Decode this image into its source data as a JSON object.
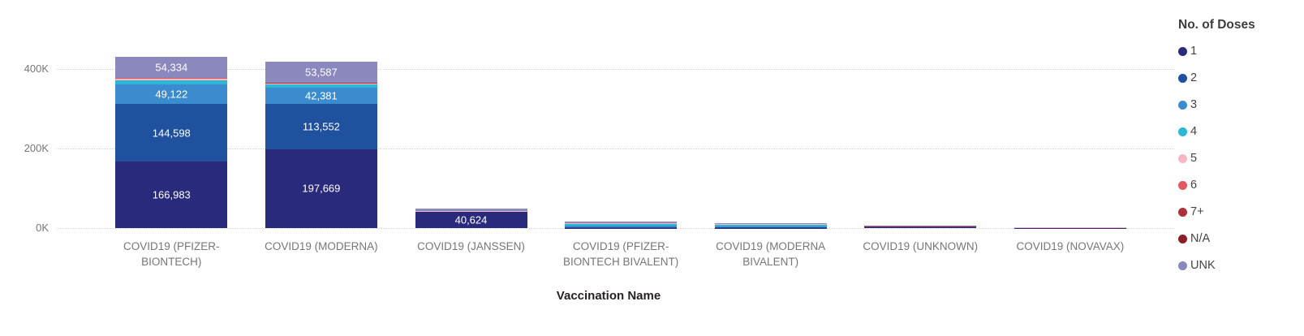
{
  "chart_data": {
    "type": "bar",
    "stacked": true,
    "title": "",
    "xlabel": "Vaccination Name",
    "ylabel": "",
    "ylim": [
      0,
      480000
    ],
    "grid": "dotted-horizontal",
    "legend_title": "No. of Doses",
    "legend_position": "right",
    "y_ticks": [
      {
        "value": 0,
        "label": "0K"
      },
      {
        "value": 200000,
        "label": "200K"
      },
      {
        "value": 400000,
        "label": "400K"
      }
    ],
    "categories": [
      "COVID19 (PFIZER-BIONTECH)",
      "COVID19 (MODERNA)",
      "COVID19 (JANSSEN)",
      "COVID19 (PFIZER-BIONTECH BIVALENT)",
      "COVID19 (MODERNA BIVALENT)",
      "COVID19 (UNKNOWN)",
      "COVID19 (NOVAVAX)"
    ],
    "series": [
      {
        "name": "1",
        "color": "#2a2a7d",
        "values": [
          166983,
          197669,
          40624,
          400,
          300,
          1500,
          400
        ],
        "labels": [
          "166,983",
          "197,669",
          "40,624",
          "",
          "",
          "",
          ""
        ]
      },
      {
        "name": "2",
        "color": "#1f519f",
        "values": [
          144598,
          113552,
          500,
          1200,
          700,
          2500,
          400
        ],
        "labels": [
          "144,598",
          "113,552",
          "",
          "",
          "",
          "",
          ""
        ]
      },
      {
        "name": "3",
        "color": "#3b8ccf",
        "values": [
          49122,
          42381,
          300,
          4000,
          2500,
          800,
          150
        ],
        "labels": [
          "49,122",
          "42,381",
          "",
          "",
          "",
          "",
          ""
        ]
      },
      {
        "name": "4",
        "color": "#2bb8d4",
        "values": [
          11000,
          7500,
          150,
          4000,
          4000,
          150,
          50
        ],
        "labels": [
          "",
          "",
          "",
          "",
          "",
          "",
          ""
        ]
      },
      {
        "name": "5",
        "color": "#f7b6c2",
        "values": [
          4000,
          2500,
          300,
          2500,
          2500,
          100,
          50
        ],
        "labels": [
          "",
          "",
          "",
          "",
          "",
          "",
          ""
        ]
      },
      {
        "name": "6",
        "color": "#e25a5f",
        "values": [
          800,
          600,
          800,
          400,
          300,
          50,
          0
        ],
        "labels": [
          "",
          "",
          "",
          "",
          "",
          "",
          ""
        ]
      },
      {
        "name": "7+",
        "color": "#ad3138",
        "values": [
          200,
          150,
          100,
          150,
          100,
          0,
          0
        ],
        "labels": [
          "",
          "",
          "",
          "",
          "",
          "",
          ""
        ]
      },
      {
        "name": "N/A",
        "color": "#8a2127",
        "values": [
          500,
          400,
          500,
          150,
          100,
          50,
          0
        ],
        "labels": [
          "",
          "",
          "",
          "",
          "",
          "",
          ""
        ]
      },
      {
        "name": "UNK",
        "color": "#8a88bd",
        "values": [
          54334,
          53587,
          6000,
          3000,
          2000,
          300,
          100
        ],
        "labels": [
          "54,334",
          "53,587",
          "",
          "",
          "",
          "",
          ""
        ]
      }
    ]
  }
}
